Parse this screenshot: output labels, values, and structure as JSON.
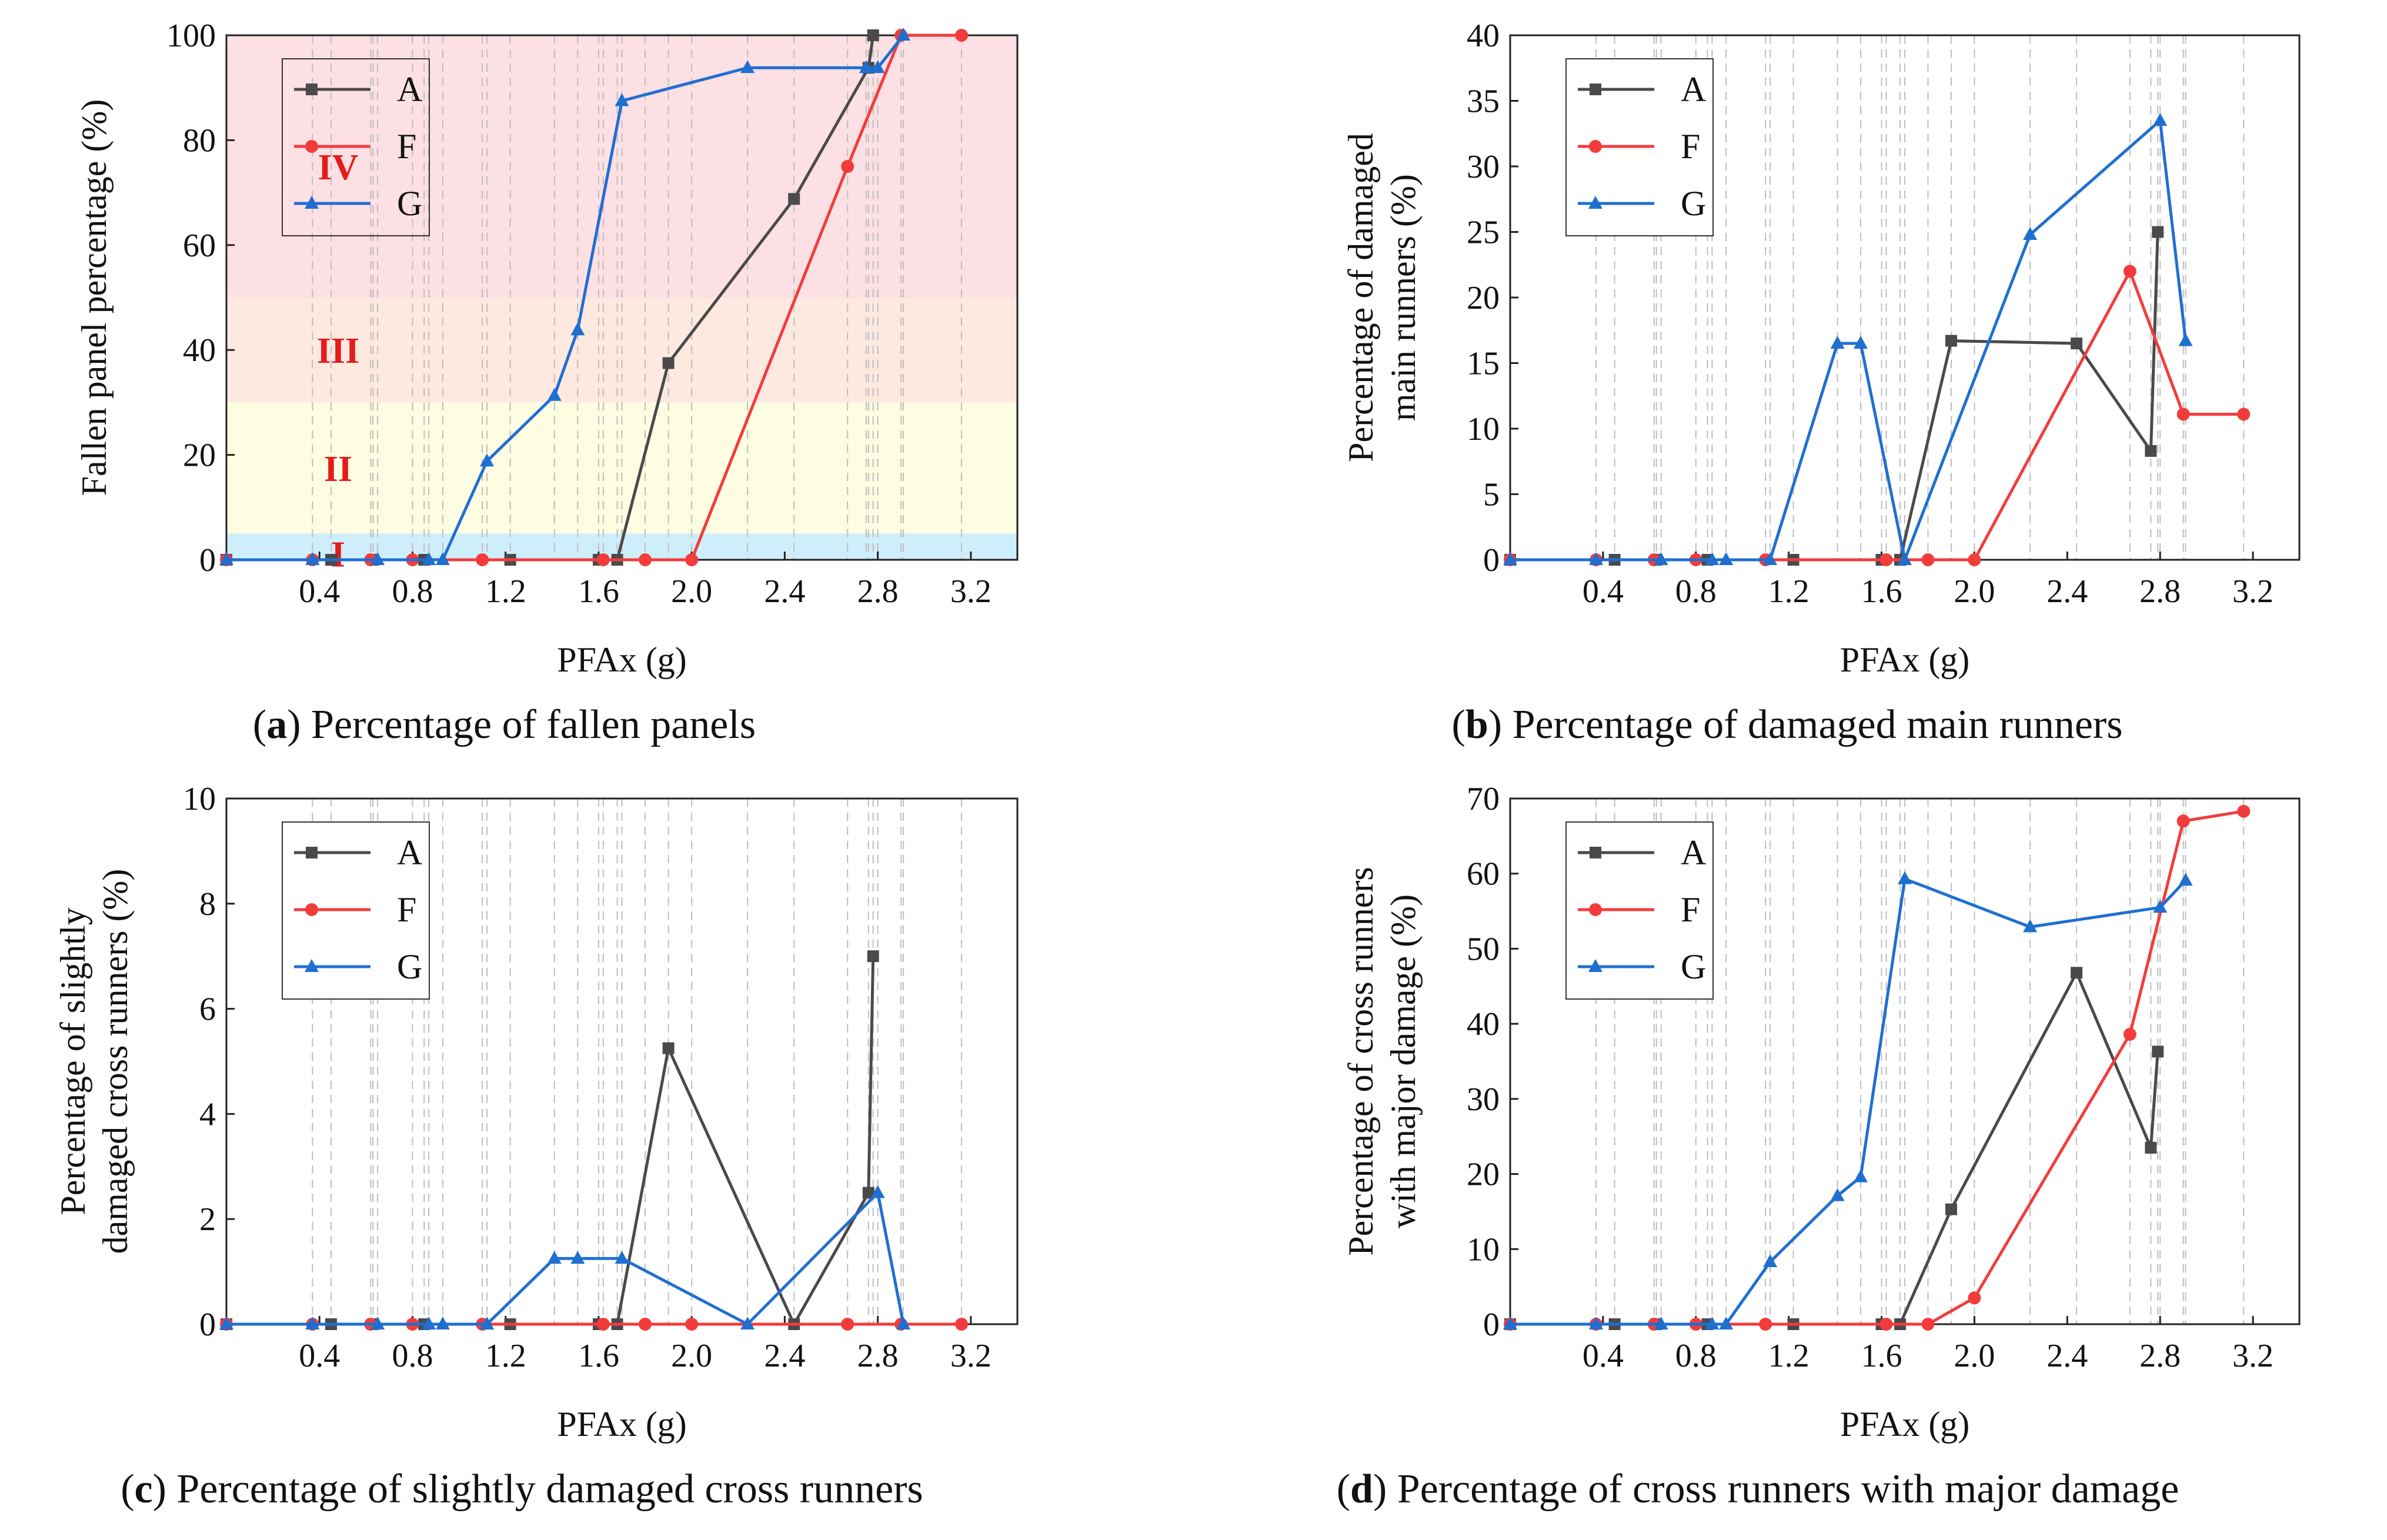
{
  "colors": {
    "A": "#4a4a4a",
    "F": "#f23c3c",
    "G": "#1f6fd1"
  },
  "chart_data": [
    {
      "id": "a",
      "type": "line",
      "title": "Percentage of fallen panels",
      "caption_letter": "a",
      "xlabel": "PFAx (g)",
      "ylabel_lines": [
        "Fallen panel percentage (%)"
      ],
      "xlim": [
        0,
        3.4
      ],
      "ylim": [
        0,
        100
      ],
      "xticks": [
        "0.4",
        "0.8",
        "1.2",
        "1.6",
        "2.0",
        "2.4",
        "2.8",
        "3.2"
      ],
      "yticks": [
        "0",
        "20",
        "40",
        "60",
        "80",
        "100"
      ],
      "legend": [
        "A",
        "F",
        "G"
      ],
      "bands": [
        {
          "label": "I",
          "from": 0,
          "to": 5,
          "color": "#cfeefb"
        },
        {
          "label": "II",
          "from": 5,
          "to": 30,
          "color": "#fdfde2"
        },
        {
          "label": "III",
          "from": 30,
          "to": 50,
          "color": "#fde9e0"
        },
        {
          "label": "IV",
          "from": 50,
          "to": 100,
          "color": "#fde0e3"
        }
      ],
      "series": [
        {
          "name": "A",
          "x": [
            0,
            0.45,
            0.63,
            0.85,
            1.22,
            1.6,
            1.68,
            1.9,
            2.44,
            2.76,
            2.78
          ],
          "y": [
            0,
            0,
            0,
            0,
            0,
            0,
            0,
            37.5,
            68.8,
            93.8,
            100
          ]
        },
        {
          "name": "F",
          "x": [
            0,
            0.37,
            0.62,
            0.8,
            1.1,
            1.62,
            1.8,
            2.0,
            2.67,
            2.9,
            3.16
          ],
          "y": [
            0,
            0,
            0,
            0,
            0,
            0,
            0,
            0,
            75,
            100,
            100
          ]
        },
        {
          "name": "G",
          "x": [
            0,
            0.37,
            0.65,
            0.87,
            0.93,
            1.12,
            1.41,
            1.51,
            1.7,
            2.24,
            2.75,
            2.8,
            2.91
          ],
          "y": [
            0,
            0,
            0,
            0,
            0,
            18.8,
            31.3,
            43.8,
            87.5,
            93.8,
            93.8,
            93.8,
            100
          ]
        }
      ]
    },
    {
      "id": "b",
      "type": "line",
      "title": "Percentage of damaged main runners",
      "caption_letter": "b",
      "xlabel": "PFAx (g)",
      "ylabel_lines": [
        "Percentage of damaged",
        "main runners (%)"
      ],
      "xlim": [
        0,
        3.4
      ],
      "ylim": [
        0,
        40
      ],
      "xticks": [
        "0.4",
        "0.8",
        "1.2",
        "1.6",
        "2.0",
        "2.4",
        "2.8",
        "3.2"
      ],
      "yticks": [
        "0",
        "5",
        "10",
        "15",
        "20",
        "25",
        "30",
        "35",
        "40"
      ],
      "legend": [
        "A",
        "F",
        "G"
      ],
      "bands": [],
      "series": [
        {
          "name": "A",
          "x": [
            0,
            0.45,
            0.63,
            0.85,
            1.22,
            1.6,
            1.68,
            1.9,
            2.44,
            2.76,
            2.79
          ],
          "y": [
            0,
            0,
            0,
            0,
            0,
            0,
            0,
            16.7,
            16.5,
            8.3,
            25
          ]
        },
        {
          "name": "F",
          "x": [
            0,
            0.37,
            0.62,
            0.8,
            1.1,
            1.62,
            1.8,
            2.0,
            2.67,
            2.9,
            3.16
          ],
          "y": [
            0,
            0,
            0,
            0,
            0,
            0,
            0,
            0,
            22,
            11.1,
            11.1
          ]
        },
        {
          "name": "G",
          "x": [
            0,
            0.37,
            0.65,
            0.87,
            0.93,
            1.12,
            1.41,
            1.51,
            1.7,
            2.24,
            2.8,
            2.91
          ],
          "y": [
            0,
            0,
            0,
            0,
            0,
            0,
            16.5,
            16.5,
            0,
            24.8,
            33.5,
            16.7
          ]
        }
      ]
    },
    {
      "id": "c",
      "type": "line",
      "title": "Percentage of slightly damaged cross runners",
      "caption_letter": "c",
      "xlabel": "PFAx (g)",
      "ylabel_lines": [
        "Percentage of slightly",
        "damaged cross runners (%)"
      ],
      "xlim": [
        0,
        3.4
      ],
      "ylim": [
        0,
        10
      ],
      "xticks": [
        "0.4",
        "0.8",
        "1.2",
        "1.6",
        "2.0",
        "2.4",
        "2.8",
        "3.2"
      ],
      "yticks": [
        "0",
        "2",
        "4",
        "6",
        "8",
        "10"
      ],
      "legend": [
        "A",
        "F",
        "G"
      ],
      "bands": [],
      "series": [
        {
          "name": "A",
          "x": [
            0,
            0.45,
            0.63,
            0.85,
            1.22,
            1.6,
            1.68,
            1.9,
            2.44,
            2.76,
            2.78
          ],
          "y": [
            0,
            0,
            0,
            0,
            0,
            0,
            0,
            5.25,
            0,
            2.5,
            7
          ]
        },
        {
          "name": "F",
          "x": [
            0,
            0.37,
            0.62,
            0.8,
            1.1,
            1.62,
            1.8,
            2.0,
            2.67,
            2.9,
            3.16
          ],
          "y": [
            0,
            0,
            0,
            0,
            0,
            0,
            0,
            0,
            0,
            0,
            0
          ]
        },
        {
          "name": "G",
          "x": [
            0,
            0.37,
            0.65,
            0.87,
            0.93,
            1.12,
            1.41,
            1.51,
            1.7,
            2.24,
            2.8,
            2.91
          ],
          "y": [
            0,
            0,
            0,
            0,
            0,
            0,
            1.25,
            1.25,
            1.25,
            0,
            2.5,
            0
          ]
        }
      ]
    },
    {
      "id": "d",
      "type": "line",
      "title": "Percentage of cross runners with major damage",
      "caption_letter": "d",
      "xlabel": "PFAx (g)",
      "ylabel_lines": [
        "Percentage of cross runners",
        "with major damage (%)"
      ],
      "xlim": [
        0,
        3.4
      ],
      "ylim": [
        0,
        70
      ],
      "xticks": [
        "0.4",
        "0.8",
        "1.2",
        "1.6",
        "2.0",
        "2.4",
        "2.8",
        "3.2"
      ],
      "yticks": [
        "0",
        "10",
        "20",
        "30",
        "40",
        "50",
        "60",
        "70"
      ],
      "legend": [
        "A",
        "F",
        "G"
      ],
      "bands": [],
      "series": [
        {
          "name": "A",
          "x": [
            0,
            0.45,
            0.63,
            0.85,
            1.22,
            1.6,
            1.68,
            1.9,
            2.44,
            2.76,
            2.79
          ],
          "y": [
            0,
            0,
            0,
            0,
            0,
            0,
            0,
            15.3,
            46.8,
            23.5,
            36.3
          ]
        },
        {
          "name": "F",
          "x": [
            0,
            0.37,
            0.62,
            0.8,
            1.1,
            1.62,
            1.8,
            2.0,
            2.67,
            2.9,
            3.16
          ],
          "y": [
            0,
            0,
            0,
            0,
            0,
            0,
            0,
            3.5,
            38.6,
            67,
            68.3
          ]
        },
        {
          "name": "G",
          "x": [
            0,
            0.37,
            0.65,
            0.87,
            0.93,
            1.12,
            1.41,
            1.51,
            1.7,
            2.24,
            2.8,
            2.91
          ],
          "y": [
            0,
            0,
            0,
            0,
            0,
            8.3,
            17.1,
            19.6,
            59.3,
            52.9,
            55.5,
            59.1
          ]
        }
      ]
    }
  ]
}
